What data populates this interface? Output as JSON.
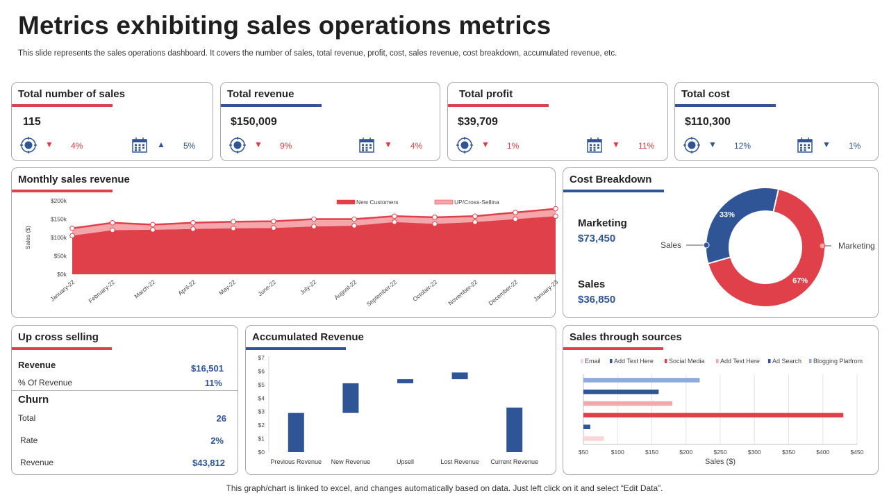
{
  "header": {
    "title": "Metrics exhibiting sales operations metrics",
    "subtitle": "This slide represents the sales operations dashboard. It covers the number of sales, total revenue, profit, cost, sales revenue, cost breakdown, accumulated revenue, etc."
  },
  "kpis": [
    {
      "title": "Total number of sales",
      "value": "115",
      "target_pct": "4%",
      "target_dir": "down",
      "calendar_pct": "5%",
      "calendar_dir": "up",
      "accent": "#e0404a"
    },
    {
      "title": "Total revenue",
      "value": "$150,009",
      "target_pct": "9%",
      "target_dir": "down",
      "calendar_pct": "4%",
      "calendar_dir": "down",
      "accent": "#2f5597"
    },
    {
      "title": "Total profit",
      "value": "$39,709",
      "target_pct": "1%",
      "target_dir": "down",
      "calendar_pct": "11%",
      "calendar_dir": "down",
      "accent": "#e0404a"
    },
    {
      "title": "Total cost",
      "value": "$110,300",
      "target_pct": "12%",
      "target_dir": "down",
      "calendar_pct": "1%",
      "calendar_dir": "down",
      "accent": "#2f5597"
    }
  ],
  "monthly": {
    "title": "Monthly sales revenue"
  },
  "cost_breakdown": {
    "title": "Cost Breakdown",
    "marketing_label": "Marketing",
    "marketing_value": "$73,450",
    "sales_label": "Sales",
    "sales_value": "$36,850"
  },
  "up_cross": {
    "title": "Up cross selling",
    "revenue_label": "Revenue",
    "revenue_value": "$16,501",
    "pct_label": "% Of Revenue",
    "pct_value": "11%",
    "churn_title": "Churn",
    "total_label": "Total",
    "total_value": "26",
    "rate_label": "Rate",
    "rate_value": "2%",
    "churn_revenue_label": "Revenue",
    "churn_revenue_value": "$43,812"
  },
  "accumulated": {
    "title": "Accumulated Revenue"
  },
  "sources": {
    "title": "Sales through sources"
  },
  "footer": "This graph/chart is linked to excel,  and changes automatically based on data. Just left click on it and select “Edit Data”.",
  "colors": {
    "red": "#e0404a",
    "light_red": "#f4a6aa",
    "blue": "#2f5597",
    "light_blue": "#8faadc",
    "pale_red": "#f9d5d7"
  },
  "chart_data": [
    {
      "type": "area",
      "title": "Monthly sales revenue",
      "ylabel": "Sales ($)",
      "ylim": [
        0,
        200000
      ],
      "yticks": [
        "$0k",
        "$50k",
        "$100k",
        "$150k",
        "$200k"
      ],
      "categories": [
        "January-22",
        "February-22",
        "March-22",
        "April-22",
        "May-22",
        "June-22",
        "July-22",
        "August-22",
        "September-22",
        "October-22",
        "November-22",
        "December-22",
        "January-23"
      ],
      "series": [
        {
          "name": "New Customers",
          "values": [
            105000,
            120000,
            121000,
            123000,
            125000,
            126000,
            130000,
            132000,
            142000,
            137000,
            142000,
            150000,
            158000
          ]
        },
        {
          "name": "UP/Cross-Sellina",
          "values": [
            125000,
            140000,
            135000,
            140000,
            143000,
            144000,
            150000,
            150000,
            158000,
            155000,
            158000,
            168000,
            178000
          ]
        }
      ]
    },
    {
      "type": "pie",
      "title": "Cost Breakdown",
      "categories": [
        "Sales",
        "Marketing"
      ],
      "values": [
        33,
        67
      ],
      "labels": [
        "33%",
        "67%"
      ]
    },
    {
      "type": "bar",
      "title": "Accumulated Revenue",
      "ylim": [
        0,
        7
      ],
      "yticks": [
        "$0",
        "$1",
        "$2",
        "$3",
        "$4",
        "$5",
        "$6",
        "$7"
      ],
      "categories": [
        "Previous Revenue",
        "New Revenue",
        "Upsell",
        "Lost Revenue",
        "Current Revenue"
      ],
      "ranges": [
        [
          0,
          2.9
        ],
        [
          2.9,
          5.1
        ],
        [
          5.1,
          5.4
        ],
        [
          5.4,
          5.9
        ],
        [
          0,
          3.3
        ]
      ]
    },
    {
      "type": "bar",
      "title": "Sales through sources",
      "xlabel": "Sales ($)",
      "xlim": [
        50,
        450
      ],
      "xticks": [
        "$50",
        "$100",
        "$150",
        "$200",
        "$250",
        "$300",
        "$350",
        "$400",
        "$450"
      ],
      "categories": [
        "Email",
        "Add Text Here",
        "Social Media",
        "Add Text Here",
        "Ad Search",
        "Blogging Platfrom"
      ],
      "values": [
        80,
        60,
        430,
        180,
        160,
        220
      ]
    }
  ]
}
